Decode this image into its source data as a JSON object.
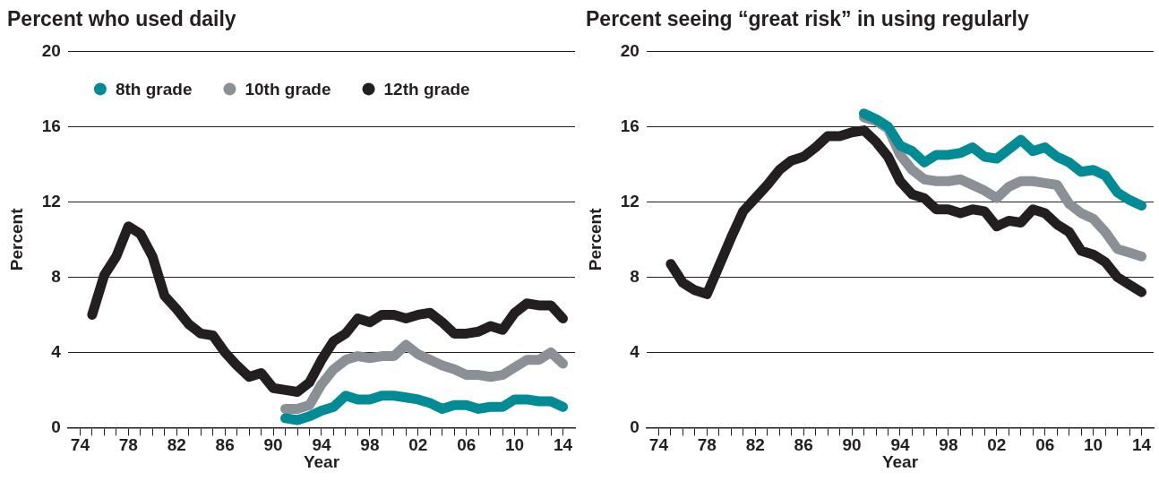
{
  "chart_data": [
    {
      "type": "line",
      "title": "Percent who used daily",
      "xlabel": "Year",
      "ylabel": "Percent",
      "xlim": [
        1973,
        2015
      ],
      "ylim": [
        0,
        20
      ],
      "yticks": [
        0,
        4,
        8,
        12,
        16,
        20
      ],
      "xticks": [
        {
          "value": 1974,
          "label": "74"
        },
        {
          "value": 1975,
          "label": null
        },
        {
          "value": 1976,
          "label": null
        },
        {
          "value": 1977,
          "label": null
        },
        {
          "value": 1978,
          "label": "78"
        },
        {
          "value": 1979,
          "label": null
        },
        {
          "value": 1980,
          "label": null
        },
        {
          "value": 1981,
          "label": null
        },
        {
          "value": 1982,
          "label": "82"
        },
        {
          "value": 1983,
          "label": null
        },
        {
          "value": 1984,
          "label": null
        },
        {
          "value": 1985,
          "label": null
        },
        {
          "value": 1986,
          "label": "86"
        },
        {
          "value": 1987,
          "label": null
        },
        {
          "value": 1988,
          "label": null
        },
        {
          "value": 1989,
          "label": null
        },
        {
          "value": 1990,
          "label": "90"
        },
        {
          "value": 1991,
          "label": null
        },
        {
          "value": 1992,
          "label": null
        },
        {
          "value": 1993,
          "label": null
        },
        {
          "value": 1994,
          "label": "94"
        },
        {
          "value": 1995,
          "label": null
        },
        {
          "value": 1996,
          "label": null
        },
        {
          "value": 1997,
          "label": null
        },
        {
          "value": 1998,
          "label": "98"
        },
        {
          "value": 1999,
          "label": null
        },
        {
          "value": 2000,
          "label": null
        },
        {
          "value": 2001,
          "label": null
        },
        {
          "value": 2002,
          "label": "02"
        },
        {
          "value": 2003,
          "label": null
        },
        {
          "value": 2004,
          "label": null
        },
        {
          "value": 2005,
          "label": null
        },
        {
          "value": 2006,
          "label": "06"
        },
        {
          "value": 2007,
          "label": null
        },
        {
          "value": 2008,
          "label": null
        },
        {
          "value": 2009,
          "label": null
        },
        {
          "value": 2010,
          "label": "10"
        },
        {
          "value": 2011,
          "label": null
        },
        {
          "value": 2012,
          "label": null
        },
        {
          "value": 2013,
          "label": null
        },
        {
          "value": 2014,
          "label": "14"
        }
      ],
      "grid": "y",
      "legend": "top left",
      "line_style": "solid",
      "marker": "none",
      "series": [
        {
          "name": "12th grade",
          "color": "#231f20",
          "x": [
            1975,
            1976,
            1977,
            1978,
            1979,
            1980,
            1981,
            1982,
            1983,
            1984,
            1985,
            1986,
            1987,
            1988,
            1989,
            1990,
            1991,
            1992,
            1993,
            1994,
            1995,
            1996,
            1997,
            1998,
            1999,
            2000,
            2001,
            2002,
            2003,
            2004,
            2005,
            2006,
            2007,
            2008,
            2009,
            2010,
            2011,
            2012,
            2013,
            2014
          ],
          "values": [
            6.0,
            8.1,
            9.1,
            10.7,
            10.3,
            9.1,
            7.0,
            6.3,
            5.5,
            5.0,
            4.9,
            4.0,
            3.3,
            2.7,
            2.9,
            2.1,
            2.0,
            1.9,
            2.4,
            3.6,
            4.6,
            5.0,
            5.8,
            5.6,
            6.0,
            6.0,
            5.8,
            6.0,
            6.1,
            5.6,
            5.0,
            5.0,
            5.1,
            5.4,
            5.2,
            6.1,
            6.6,
            6.5,
            6.5,
            5.8
          ]
        },
        {
          "name": "8th grade",
          "color": "#008b95",
          "x": [
            1991,
            1992,
            1993,
            1994,
            1995,
            1996,
            1997,
            1998,
            1999,
            2000,
            2001,
            2002,
            2003,
            2004,
            2005,
            2006,
            2007,
            2008,
            2009,
            2010,
            2011,
            2012,
            2013,
            2014
          ],
          "values": [
            0.5,
            0.4,
            0.6,
            0.9,
            1.1,
            1.7,
            1.5,
            1.5,
            1.7,
            1.7,
            1.6,
            1.5,
            1.3,
            1.0,
            1.2,
            1.2,
            1.0,
            1.1,
            1.1,
            1.5,
            1.5,
            1.4,
            1.4,
            1.1
          ]
        },
        {
          "name": "10th grade",
          "color": "#8a9096",
          "x": [
            1991,
            1992,
            1993,
            1994,
            1995,
            1996,
            1997,
            1998,
            1999,
            2000,
            2001,
            2002,
            2003,
            2004,
            2005,
            2006,
            2007,
            2008,
            2009,
            2010,
            2011,
            2012,
            2013,
            2014
          ],
          "values": [
            1.0,
            1.0,
            1.2,
            2.3,
            3.1,
            3.6,
            3.8,
            3.7,
            3.8,
            3.8,
            4.4,
            3.9,
            3.6,
            3.3,
            3.1,
            2.8,
            2.8,
            2.7,
            2.8,
            3.2,
            3.6,
            3.6,
            4.0,
            3.4
          ]
        }
      ]
    },
    {
      "type": "line",
      "title": "Percent seeing “great risk” in using regularly",
      "xlabel": "Year",
      "ylabel": "Percent",
      "xlim": [
        1973,
        2015
      ],
      "ylim": [
        0,
        20
      ],
      "yticks": [
        0,
        4,
        8,
        12,
        16,
        20
      ],
      "xticks": [
        {
          "value": 1974,
          "label": "74"
        },
        {
          "value": 1975,
          "label": null
        },
        {
          "value": 1976,
          "label": null
        },
        {
          "value": 1977,
          "label": null
        },
        {
          "value": 1978,
          "label": "78"
        },
        {
          "value": 1979,
          "label": null
        },
        {
          "value": 1980,
          "label": null
        },
        {
          "value": 1981,
          "label": null
        },
        {
          "value": 1982,
          "label": "82"
        },
        {
          "value": 1983,
          "label": null
        },
        {
          "value": 1984,
          "label": null
        },
        {
          "value": 1985,
          "label": null
        },
        {
          "value": 1986,
          "label": "86"
        },
        {
          "value": 1987,
          "label": null
        },
        {
          "value": 1988,
          "label": null
        },
        {
          "value": 1989,
          "label": null
        },
        {
          "value": 1990,
          "label": "90"
        },
        {
          "value": 1991,
          "label": null
        },
        {
          "value": 1992,
          "label": null
        },
        {
          "value": 1993,
          "label": null
        },
        {
          "value": 1994,
          "label": "94"
        },
        {
          "value": 1995,
          "label": null
        },
        {
          "value": 1996,
          "label": null
        },
        {
          "value": 1997,
          "label": null
        },
        {
          "value": 1998,
          "label": "98"
        },
        {
          "value": 1999,
          "label": null
        },
        {
          "value": 2000,
          "label": null
        },
        {
          "value": 2001,
          "label": null
        },
        {
          "value": 2002,
          "label": "02"
        },
        {
          "value": 2003,
          "label": null
        },
        {
          "value": 2004,
          "label": null
        },
        {
          "value": 2005,
          "label": null
        },
        {
          "value": 2006,
          "label": "06"
        },
        {
          "value": 2007,
          "label": null
        },
        {
          "value": 2008,
          "label": null
        },
        {
          "value": 2009,
          "label": null
        },
        {
          "value": 2010,
          "label": "10"
        },
        {
          "value": 2011,
          "label": null
        },
        {
          "value": 2012,
          "label": null
        },
        {
          "value": 2013,
          "label": null
        },
        {
          "value": 2014,
          "label": "14"
        }
      ],
      "grid": "y",
      "line_style": "solid",
      "marker": "none",
      "series": [
        {
          "color": "#231f20",
          "x": [
            1975,
            1976,
            1977,
            1978,
            1979,
            1980,
            1981,
            1982,
            1983,
            1984,
            1985,
            1986,
            1987,
            1988,
            1989,
            1990,
            1991,
            1992,
            1993,
            1994,
            1995,
            1996,
            1997,
            1998,
            1999,
            2000,
            2001,
            2002,
            2003,
            2004,
            2005,
            2006,
            2007,
            2008,
            2009,
            2010,
            2011,
            2012,
            2013,
            2014
          ],
          "values": [
            8.7,
            7.7,
            7.3,
            7.1,
            8.6,
            10.1,
            11.5,
            12.2,
            12.9,
            13.7,
            14.2,
            14.4,
            14.9,
            15.5,
            15.5,
            15.7,
            15.8,
            15.2,
            14.4,
            13.1,
            12.4,
            12.2,
            11.6,
            11.6,
            11.4,
            11.6,
            11.5,
            10.7,
            11.0,
            10.9,
            11.6,
            11.4,
            10.8,
            10.4,
            9.4,
            9.2,
            8.8,
            8.0,
            7.6,
            7.2
          ]
        },
        {
          "color": "#008b95",
          "x": [
            1991,
            1992,
            1993,
            1994,
            1995,
            1996,
            1997,
            1998,
            1999,
            2000,
            2001,
            2002,
            2003,
            2004,
            2005,
            2006,
            2007,
            2008,
            2009,
            2010,
            2011,
            2012,
            2013,
            2014
          ],
          "values": [
            16.7,
            16.4,
            16.0,
            15.0,
            14.7,
            14.1,
            14.5,
            14.5,
            14.6,
            14.9,
            14.4,
            14.3,
            14.8,
            15.3,
            14.7,
            14.9,
            14.4,
            14.1,
            13.6,
            13.7,
            13.4,
            12.5,
            12.1,
            11.8
          ]
        },
        {
          "color": "#8a9096",
          "x": [
            1991,
            1992,
            1993,
            1994,
            1995,
            1996,
            1997,
            1998,
            1999,
            2000,
            2001,
            2002,
            2003,
            2004,
            2005,
            2006,
            2007,
            2008,
            2009,
            2010,
            2011,
            2012,
            2013,
            2014
          ],
          "values": [
            16.5,
            16.3,
            15.9,
            14.5,
            13.7,
            13.2,
            13.1,
            13.1,
            13.2,
            12.9,
            12.6,
            12.2,
            12.8,
            13.1,
            13.1,
            13.0,
            12.9,
            11.9,
            11.4,
            11.1,
            10.4,
            9.5,
            9.3,
            9.1
          ]
        }
      ]
    }
  ]
}
